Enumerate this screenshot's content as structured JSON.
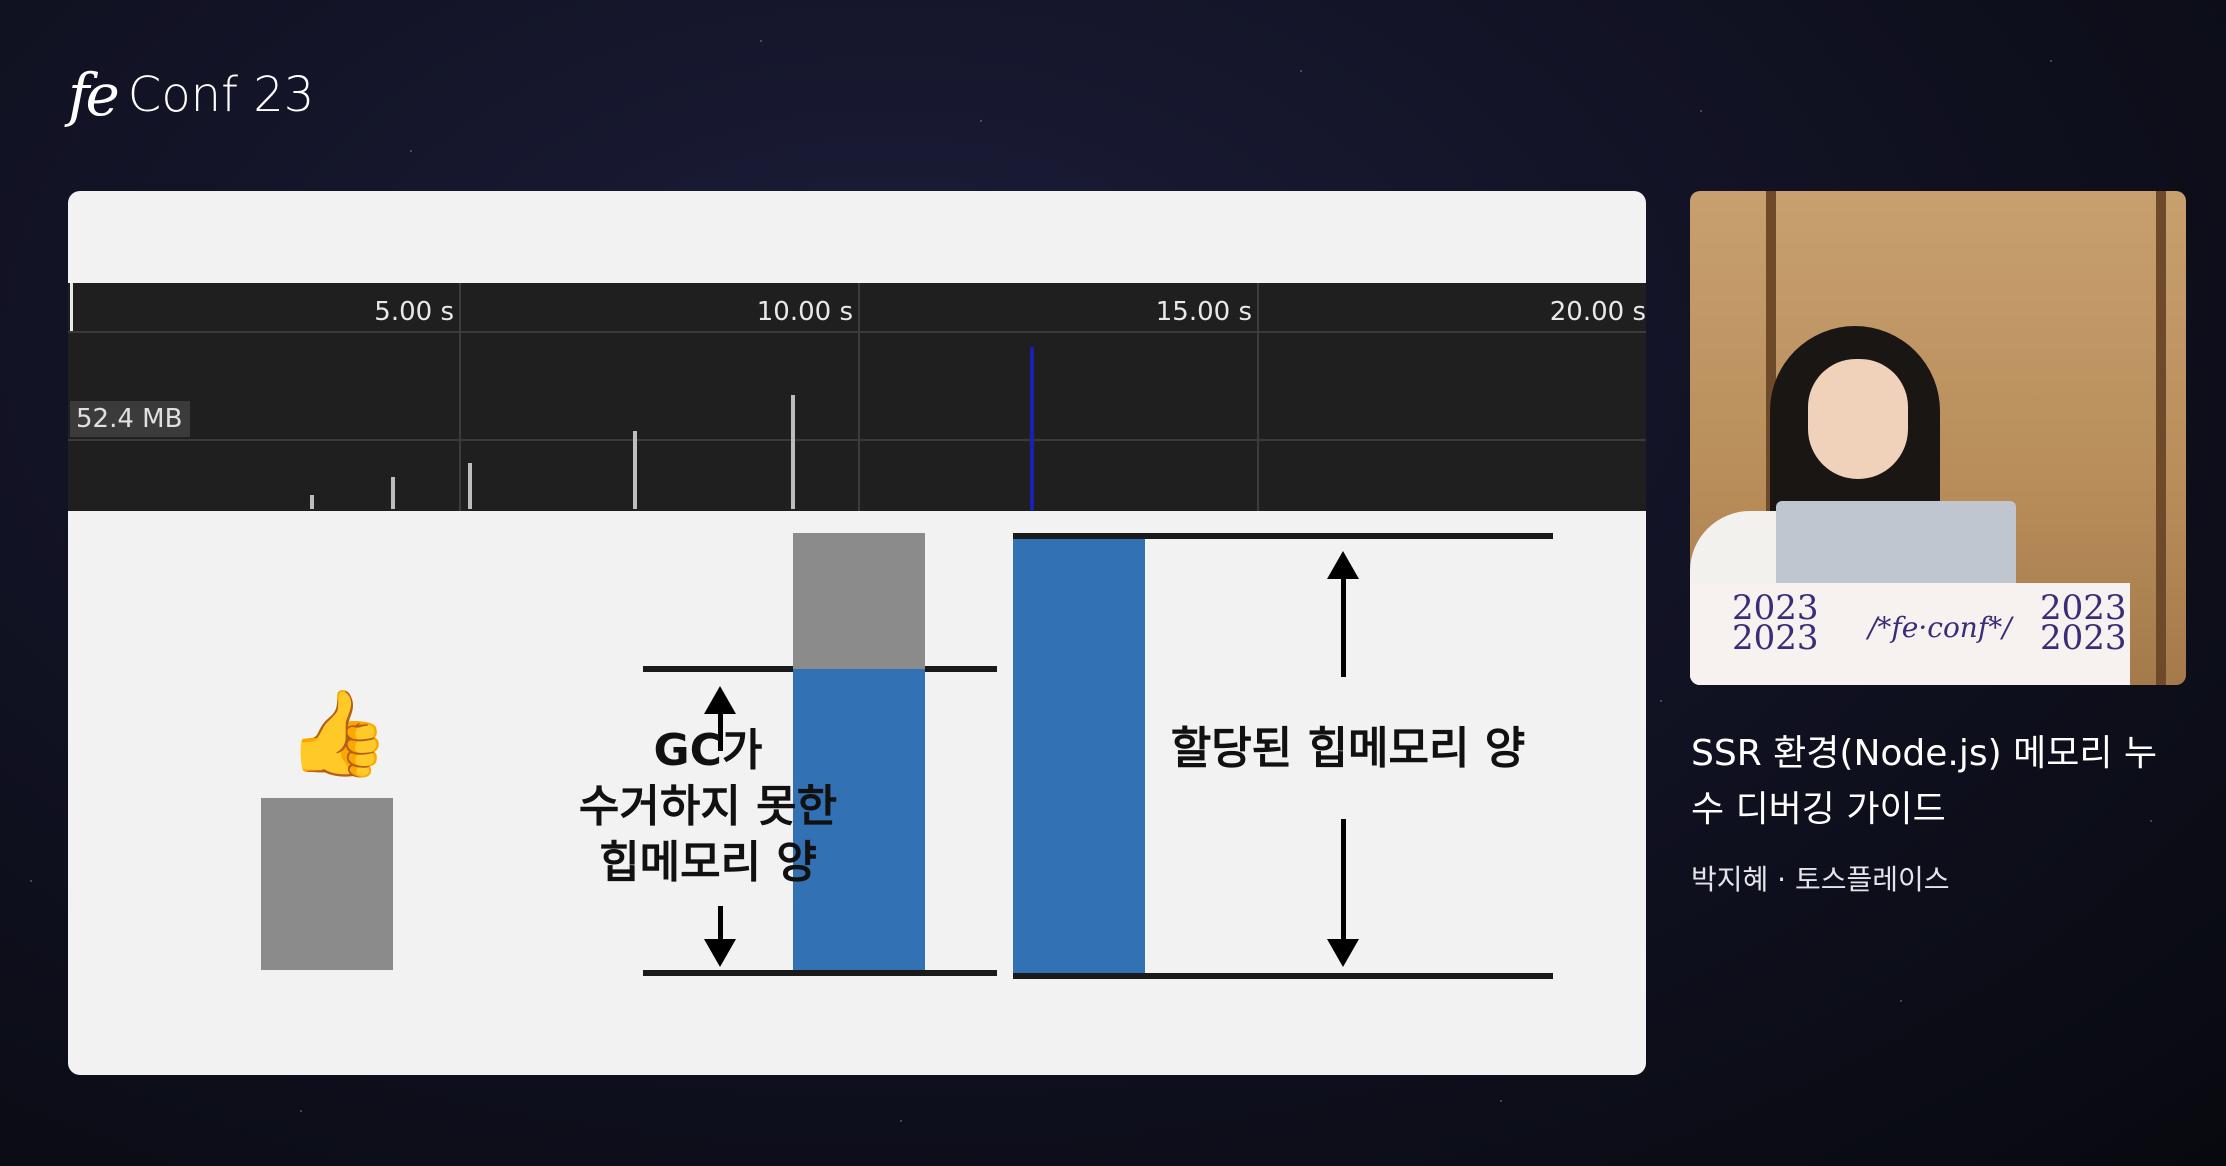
{
  "header": {
    "logo_mark": "fe",
    "logo_text": "Conf 23"
  },
  "timeline": {
    "ticks": [
      "5.00 s",
      "10.00 s",
      "15.00 s",
      "20.00 s"
    ],
    "memory_label": "52.4 MB"
  },
  "diagram": {
    "gc_label_line1": "GC가",
    "gc_label_line2": "수거하지 못한",
    "gc_label_line3": "힙메모리 양",
    "allocated_label": "할당된 힙메모리 양",
    "thumb_emoji": "👍"
  },
  "video_overlay": {
    "podium_year": "2023",
    "podium_logo": "/*fe·conf*/"
  },
  "talk": {
    "title": "SSR 환경(Node.js) 메모리 누수 디버깅 가이드",
    "speaker": "박지혜 · 토스플레이스"
  },
  "colors": {
    "accent_blue": "#3271b4",
    "gray_block": "#8b8b8b",
    "timeline_cursor": "#1d1fb0"
  }
}
